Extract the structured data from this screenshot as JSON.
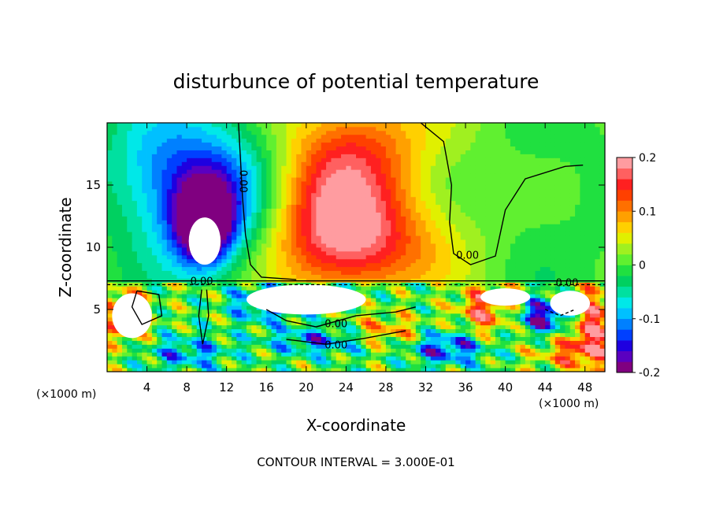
{
  "chart_data": {
    "type": "heatmap",
    "title": "disturbunce of potential temperature",
    "xlabel": "X-coordinate",
    "ylabel": "Z-coordinate",
    "x_unit_left": "(×1000 m)",
    "x_unit_right": "(×1000 m)",
    "xlim": [
      0,
      50
    ],
    "ylim": [
      0,
      20
    ],
    "x_ticks": [
      4,
      8,
      12,
      16,
      20,
      24,
      28,
      32,
      36,
      40,
      44,
      48
    ],
    "y_ticks": [
      5,
      10,
      15
    ],
    "footer": "CONTOUR INTERVAL = 3.000E-01",
    "colorbar": {
      "range": [
        -0.2,
        0.2
      ],
      "tick_labels": [
        "0.2",
        "0.1",
        "0",
        "-0.1",
        "-0.2"
      ],
      "tick_values": [
        0.2,
        0.1,
        0,
        -0.1,
        -0.2
      ],
      "colors": [
        "#800080",
        "#5a00c0",
        "#1e00e0",
        "#0040ff",
        "#0080ff",
        "#00c0ff",
        "#00e8e8",
        "#00e0a0",
        "#00d060",
        "#20e040",
        "#60f030",
        "#a0f020",
        "#e0f000",
        "#ffd000",
        "#ffa000",
        "#ff7000",
        "#ff4000",
        "#ff2020",
        "#ff6060",
        "#ff9ca0"
      ]
    },
    "contour_labels": [
      {
        "text": "0.00",
        "x": 13.6,
        "z": 15.3
      },
      {
        "text": "0.00",
        "x": 9.5,
        "z": 7.2
      },
      {
        "text": "0.00",
        "x": 36.2,
        "z": 9.3
      },
      {
        "text": "0.00",
        "x": 46.2,
        "z": 7.1
      },
      {
        "text": "0.00",
        "x": 23.0,
        "z": 3.8
      },
      {
        "text": "0.00",
        "x": 23.0,
        "z": 2.1
      }
    ],
    "fields": {
      "upper_blobs": [
        {
          "x": 9.5,
          "z": 14.5,
          "sx": 5.0,
          "sz": 4.0,
          "v": -0.16
        },
        {
          "x": 9.8,
          "z": 11.8,
          "sx": 2.0,
          "sz": 2.2,
          "v": -0.2
        },
        {
          "x": 3.5,
          "z": 18.0,
          "sx": 3.5,
          "sz": 3.0,
          "v": -0.03
        },
        {
          "x": 23.0,
          "z": 13.0,
          "sx": 5.0,
          "sz": 4.5,
          "v": 0.16
        },
        {
          "x": 27.0,
          "z": 10.0,
          "sx": 6.0,
          "sz": 3.0,
          "v": 0.08
        },
        {
          "x": 26.0,
          "z": 19.0,
          "sx": 5.0,
          "sz": 3.0,
          "v": 0.07
        },
        {
          "x": 36.0,
          "z": 15.0,
          "sx": 4.0,
          "sz": 5.0,
          "v": 0.02
        },
        {
          "x": 41.0,
          "z": 14.0,
          "sx": 6.0,
          "sz": 4.0,
          "v": -0.015
        }
      ],
      "lower_blobs": [
        {
          "x": 2.0,
          "z": 4.5,
          "sx": 1.5,
          "sz": 1.5,
          "v": 0.15
        },
        {
          "x": 16.0,
          "z": 5.5,
          "sx": 2.5,
          "sz": 1.0,
          "v": -0.14
        },
        {
          "x": 22.0,
          "z": 2.5,
          "sx": 4.0,
          "sz": 0.8,
          "v": -0.12
        },
        {
          "x": 28.0,
          "z": 3.0,
          "sx": 3.0,
          "sz": 1.0,
          "v": 0.12
        },
        {
          "x": 34.0,
          "z": 2.0,
          "sx": 3.0,
          "sz": 1.0,
          "v": -0.15
        },
        {
          "x": 38.0,
          "z": 5.0,
          "sx": 2.0,
          "sz": 1.5,
          "v": 0.14
        },
        {
          "x": 44.0,
          "z": 4.5,
          "sx": 2.0,
          "sz": 1.0,
          "v": -0.18
        },
        {
          "x": 47.0,
          "z": 1.5,
          "sx": 3.0,
          "sz": 1.0,
          "v": 0.1
        },
        {
          "x": 8.0,
          "z": 1.5,
          "sx": 3.0,
          "sz": 1.0,
          "v": -0.1
        },
        {
          "x": 48.5,
          "z": 4.0,
          "sx": 1.5,
          "sz": 2.0,
          "v": 0.16
        }
      ],
      "white_regions": [
        {
          "x": 2.5,
          "z": 4.5,
          "rx": 2.0,
          "rz": 1.8
        },
        {
          "x": 9.8,
          "z": 10.5,
          "rx": 1.6,
          "rz": 1.9
        },
        {
          "x": 20.0,
          "z": 5.8,
          "rx": 6.0,
          "rz": 1.2
        },
        {
          "x": 40.0,
          "z": 6.0,
          "rx": 2.5,
          "rz": 0.7
        },
        {
          "x": 46.5,
          "z": 5.5,
          "rx": 2.0,
          "rz": 1.0
        }
      ]
    }
  }
}
